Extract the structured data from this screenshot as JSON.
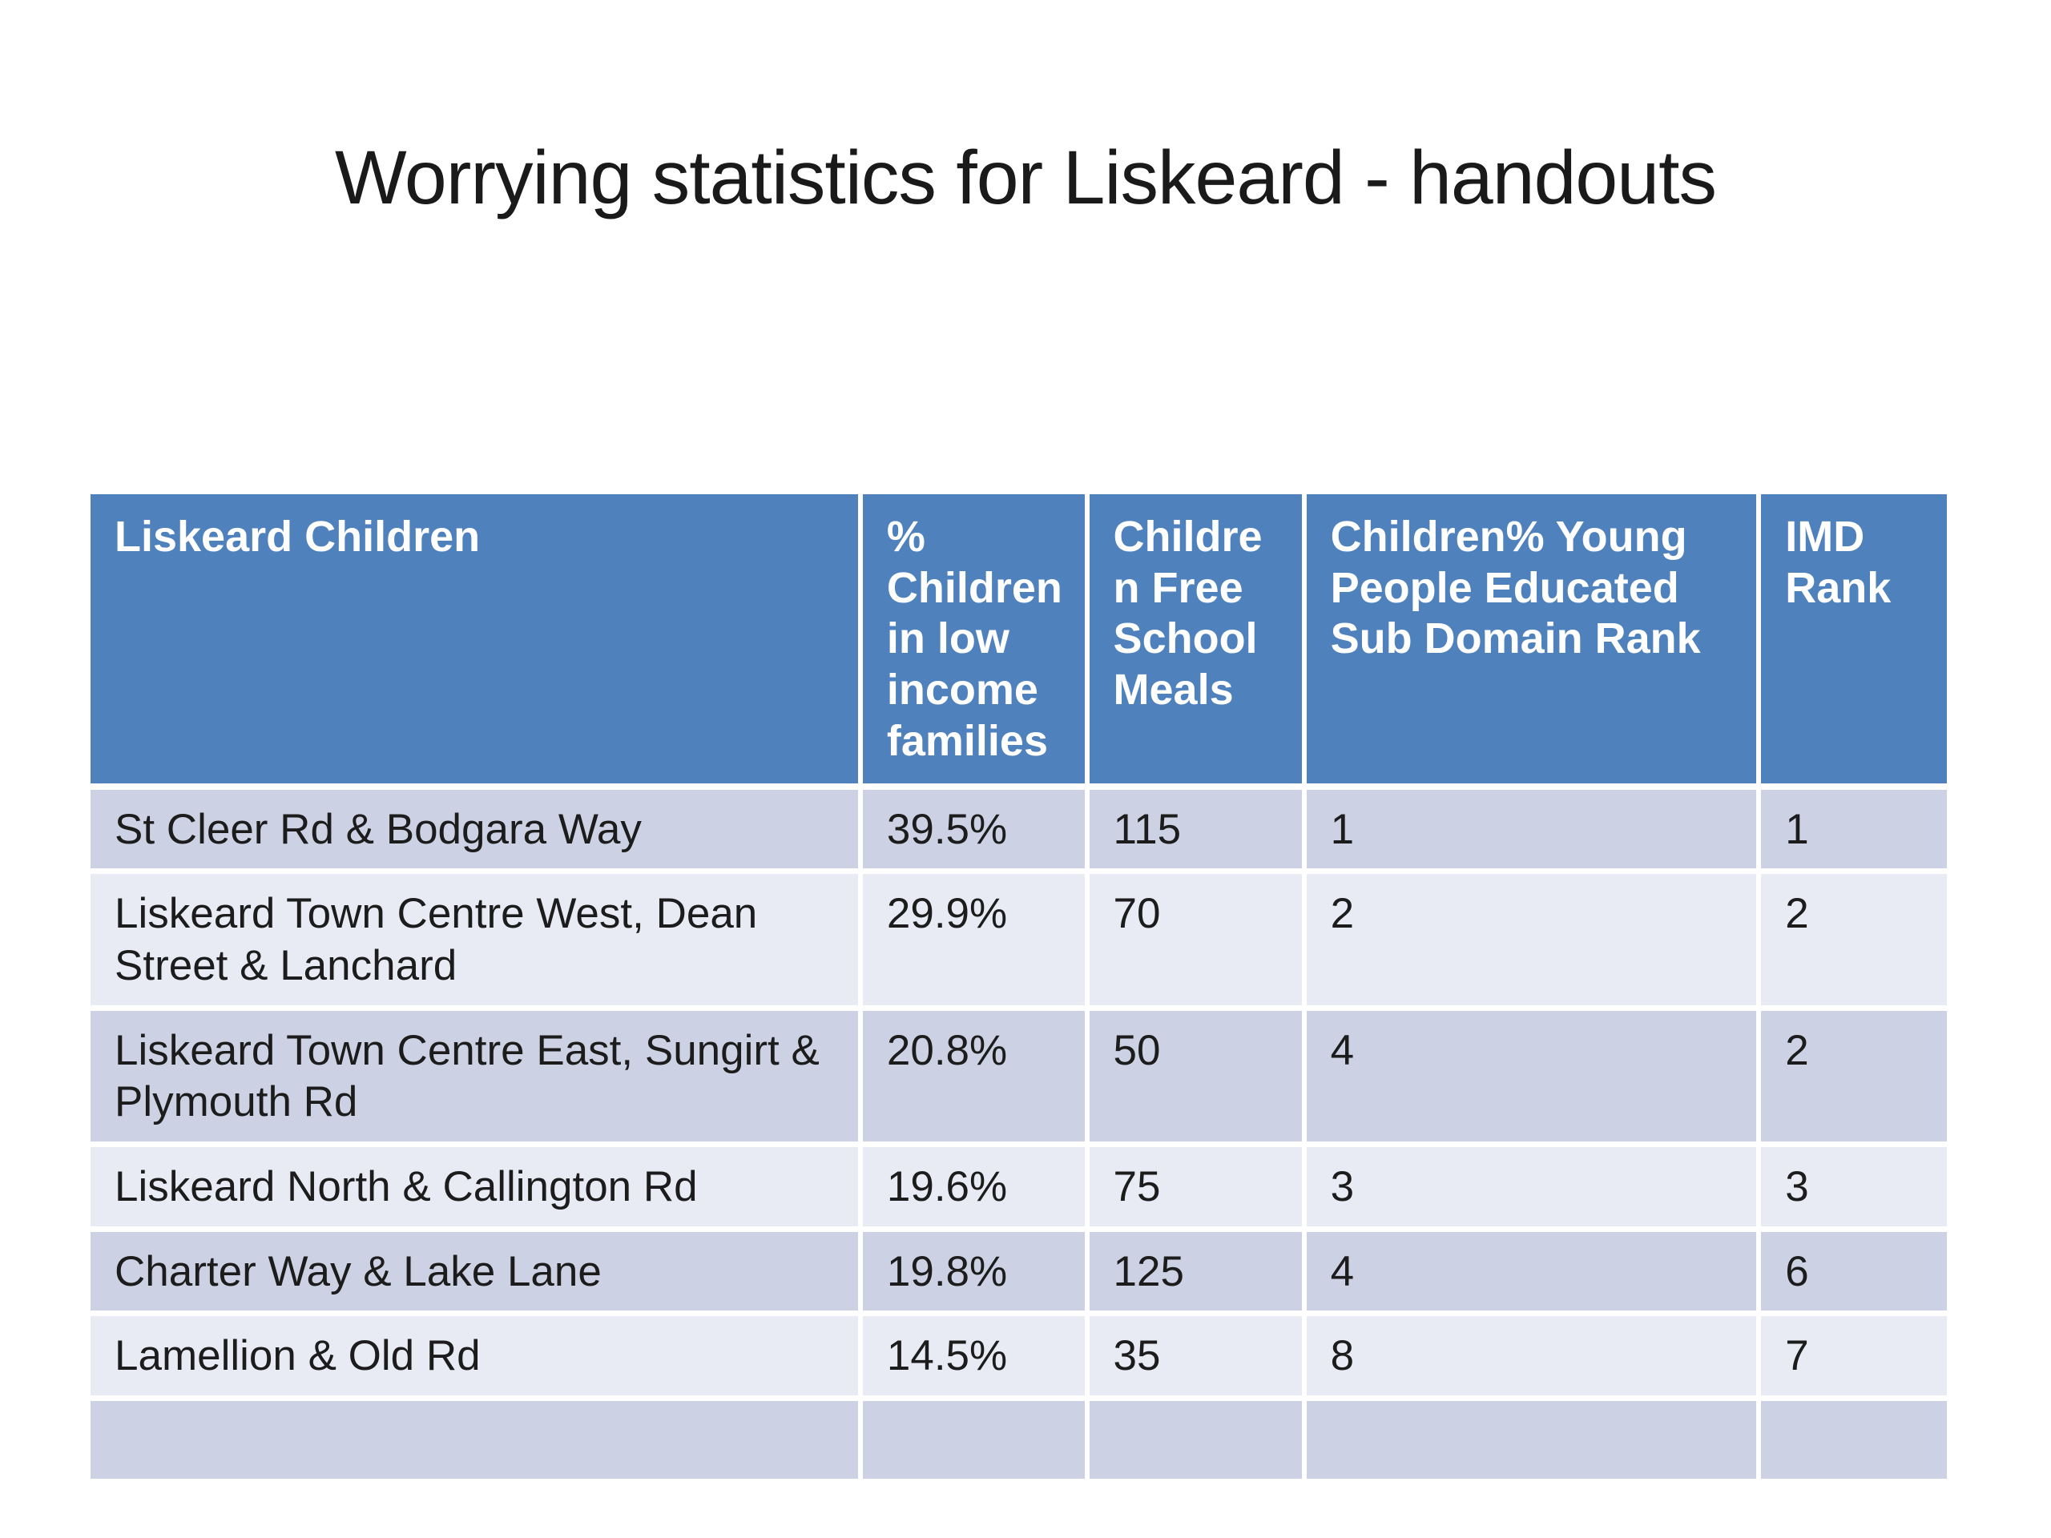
{
  "slide": {
    "title": "Worrying statistics for Liskeard - handouts"
  },
  "table": {
    "columns": [
      "Liskeard Children",
      "% Children in low income families",
      "Children Free School Meals",
      "Children% Young People Educated Sub Domain Rank",
      "IMD Rank"
    ],
    "rows": [
      [
        "St Cleer Rd & Bodgara Way",
        "39.5%",
        "115",
        "1",
        "1"
      ],
      [
        "Liskeard Town Centre West, Dean Street & Lanchard",
        "29.9%",
        "70",
        "2",
        "2"
      ],
      [
        "Liskeard Town Centre East, Sungirt & Plymouth Rd",
        "20.8%",
        "50",
        "4",
        "2"
      ],
      [
        "Liskeard North & Callington Rd",
        "19.6%",
        "75",
        "3",
        "3"
      ],
      [
        "Charter Way & Lake Lane",
        "19.8%",
        "125",
        "4",
        "6"
      ],
      [
        "Lamellion & Old Rd",
        "14.5%",
        "35",
        "8",
        "7"
      ],
      [
        "",
        "",
        "",
        "",
        ""
      ]
    ]
  },
  "colors": {
    "header_bg": "#4f81bd",
    "header_text": "#ffffff",
    "row_band_dark": "#ccd2e3",
    "row_band_light": "#e9ebf4",
    "body_text": "#1c1c1c",
    "title_text": "#1a1a1a",
    "gridline": "#ffffff"
  }
}
